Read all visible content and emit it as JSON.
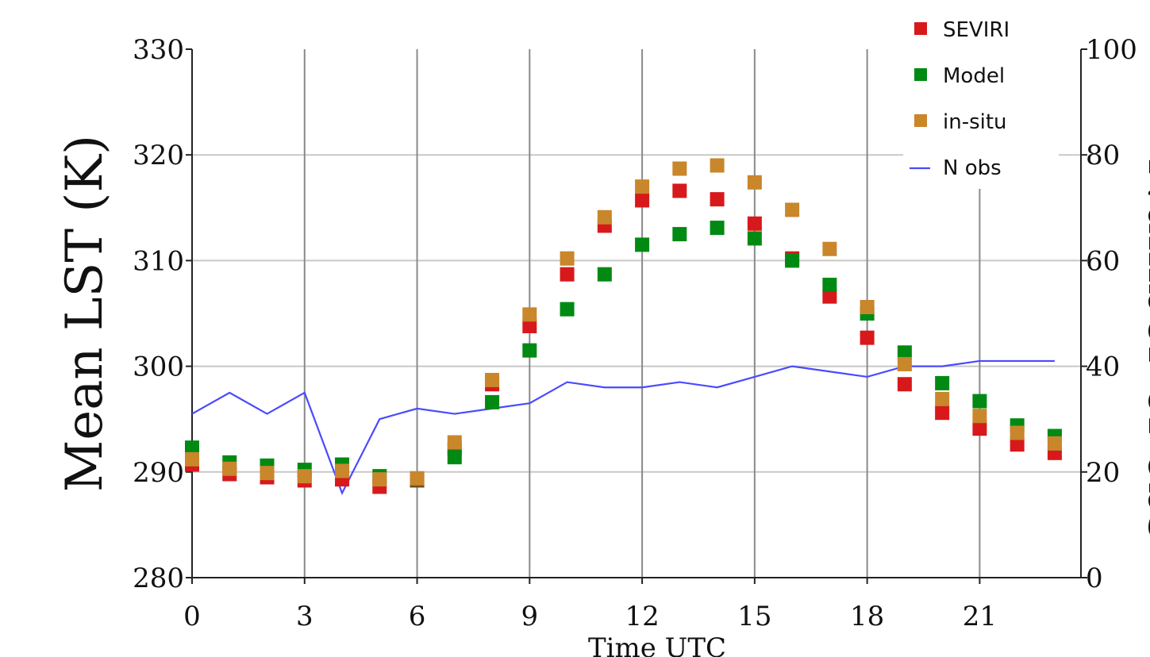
{
  "chart_data": {
    "type": "scatter",
    "title": "",
    "xlabel": "Time UTC",
    "ylabel": "Mean LST (K)",
    "y2label": "Number of obs",
    "xlim": [
      0,
      23.7
    ],
    "ylim": [
      280,
      330
    ],
    "y2lim": [
      0,
      100
    ],
    "xticks": [
      0,
      3,
      6,
      9,
      12,
      15,
      18,
      21
    ],
    "yticks": [
      280,
      290,
      300,
      310,
      320,
      330
    ],
    "y2ticks": [
      0,
      20,
      40,
      60,
      80,
      100
    ],
    "grid": true,
    "legend_position": "top-right",
    "x": [
      0,
      1,
      2,
      3,
      4,
      5,
      6,
      7,
      8,
      9,
      10,
      11,
      12,
      13,
      14,
      15,
      16,
      17,
      18,
      19,
      20,
      21,
      22,
      23
    ],
    "series": [
      {
        "name": "SEVIRI",
        "marker": "square",
        "color": "#d7191c",
        "values": [
          290.7,
          289.8,
          289.5,
          289.2,
          289.3,
          288.6,
          289.2,
          292.2,
          298.3,
          303.8,
          308.7,
          313.3,
          315.7,
          316.6,
          315.8,
          313.5,
          310.2,
          306.6,
          302.7,
          298.3,
          295.6,
          294.1,
          292.6,
          291.8
        ]
      },
      {
        "name": "Model",
        "marker": "square",
        "color": "#008a13",
        "values": [
          292.3,
          290.9,
          290.6,
          290.2,
          290.7,
          289.6,
          289.3,
          291.4,
          296.6,
          301.5,
          305.4,
          308.7,
          311.5,
          312.5,
          313.1,
          312.1,
          310.0,
          307.7,
          305.0,
          301.3,
          298.4,
          296.7,
          294.4,
          293.4
        ]
      },
      {
        "name": "in-situ",
        "marker": "square",
        "color": "#c9862b",
        "values": [
          291.2,
          290.3,
          289.9,
          289.6,
          290.1,
          289.3,
          289.4,
          292.8,
          298.7,
          304.9,
          310.2,
          314.1,
          317.0,
          318.7,
          319.0,
          317.4,
          314.8,
          311.1,
          305.6,
          300.2,
          296.9,
          295.3,
          293.7,
          292.7
        ]
      },
      {
        "name": "N obs",
        "type": "line",
        "axis": "right",
        "color": "#4a4aff",
        "values": [
          31,
          35,
          31,
          35,
          16,
          30,
          32,
          31,
          32,
          33,
          37,
          36,
          36,
          37,
          36,
          38,
          40,
          39,
          38,
          40,
          40,
          41,
          41,
          41
        ]
      }
    ]
  }
}
